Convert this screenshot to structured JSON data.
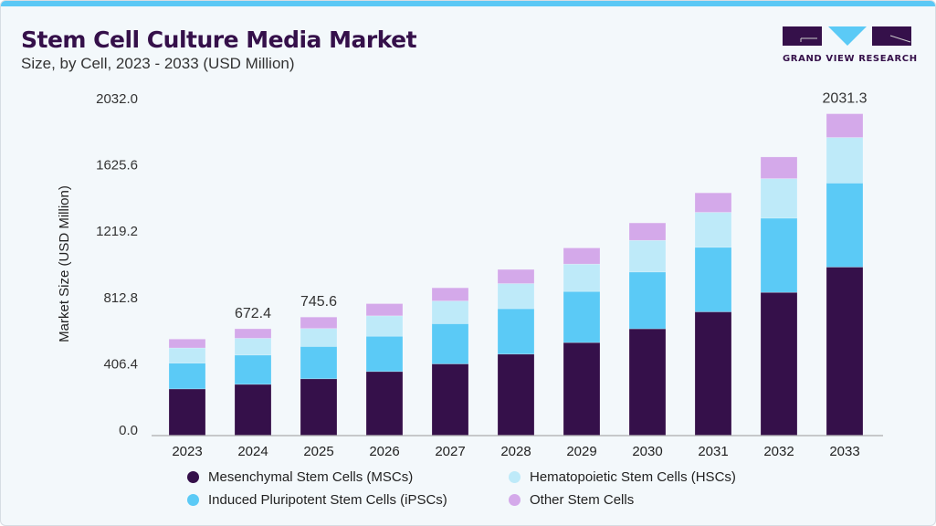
{
  "header": {
    "title": "Stem Cell Culture Media Market",
    "subtitle": "Size, by Cell, 2023 - 2033 (USD Million)",
    "logo_text": "GRAND VIEW RESEARCH"
  },
  "chart_data": {
    "type": "bar",
    "stacked": true,
    "ylabel": "Market Size (USD Million)",
    "xlabel": "",
    "ylim": [
      0,
      2032.0
    ],
    "yticks": [
      "0.0",
      "406.4",
      "812.8",
      "1219.2",
      "1625.6",
      "2032.0"
    ],
    "categories": [
      "2023",
      "2024",
      "2025",
      "2026",
      "2027",
      "2028",
      "2029",
      "2030",
      "2031",
      "2032",
      "2033"
    ],
    "series": [
      {
        "name": "Mesenchymal Stem Cells (MSCs)",
        "color": "#35104a",
        "values": [
          292,
          321,
          356,
          402,
          450,
          512,
          585,
          672,
          779,
          902,
          1062
        ]
      },
      {
        "name": "Induced Pluripotent Stem Cells (iPSCs)",
        "color": "#5bcaf6",
        "values": [
          163,
          185,
          204,
          223,
          254,
          287,
          323,
          359,
          408,
          469,
          531
        ]
      },
      {
        "name": "Hematopoietic Stem Cells (HSCs)",
        "color": "#beeaf9",
        "values": [
          96,
          106,
          114,
          129,
          144,
          159,
          173,
          200,
          221,
          250,
          288
        ]
      },
      {
        "name": "Other Stem Cells",
        "color": "#d4a9ea",
        "values": [
          56,
          60,
          72,
          77,
          83,
          89,
          102,
          110,
          123,
          137,
          150
        ]
      }
    ],
    "data_labels": {
      "2024": "672.4",
      "2025": "745.6",
      "2033": "2031.3"
    },
    "legend_position": "bottom",
    "grid": false
  }
}
